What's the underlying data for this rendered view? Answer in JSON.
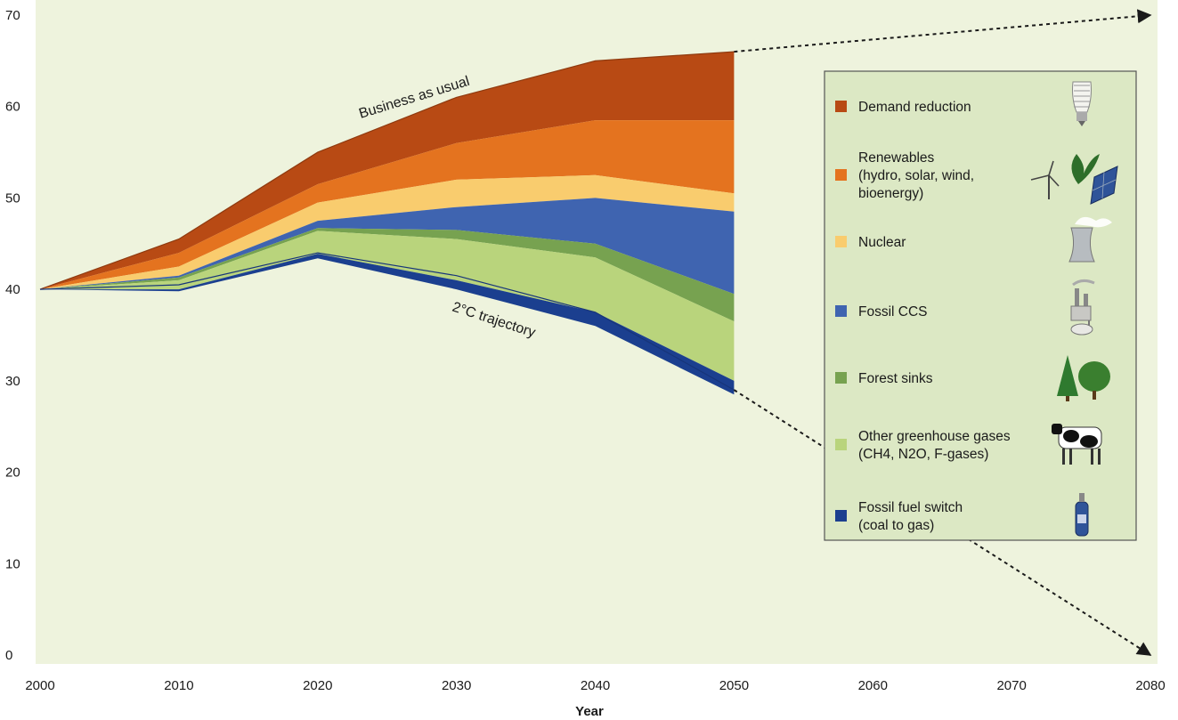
{
  "chart_data": {
    "type": "area",
    "xlabel": "Year",
    "ylabel": "",
    "xlim": [
      2000,
      2080
    ],
    "ylim": [
      0,
      70
    ],
    "x_ticks": [
      2000,
      2010,
      2020,
      2030,
      2040,
      2050,
      2060,
      2070,
      2080
    ],
    "y_ticks": [
      0,
      10,
      20,
      30,
      40,
      50,
      60,
      70
    ],
    "x": [
      2000,
      2010,
      2020,
      2030,
      2040,
      2050
    ],
    "upper_line": {
      "name": "Business as usual",
      "values": [
        40,
        45.5,
        55,
        61,
        65,
        66
      ]
    },
    "lower_line": {
      "name": "2°C trajectory",
      "values": [
        40,
        40.5,
        44,
        41.5,
        37.5,
        29
      ]
    },
    "series": [
      {
        "name": "Demand reduction",
        "color": "#b84a14",
        "values": [
          0,
          1.5,
          3.5,
          5,
          6.5,
          7.5
        ]
      },
      {
        "name": "Renewables (hydro, solar, wind, bioenergy)",
        "color": "#e4731f",
        "values": [
          0,
          1.5,
          2,
          4,
          6,
          8
        ]
      },
      {
        "name": "Nuclear",
        "color": "#f9cc6e",
        "values": [
          0,
          1,
          2,
          3,
          2.5,
          2
        ]
      },
      {
        "name": "Fossil CCS",
        "color": "#3f64b0",
        "values": [
          0,
          0.2,
          0.8,
          2.5,
          5,
          9
        ]
      },
      {
        "name": "Forest sinks",
        "color": "#77a250",
        "values": [
          0,
          0.3,
          0.3,
          1,
          1.5,
          3
        ]
      },
      {
        "name": "Other greenhouse gases (CH4, N2O, F-gases)",
        "color": "#b9d47c",
        "values": [
          0,
          1,
          2.5,
          4.5,
          6,
          6.5
        ]
      },
      {
        "name": "Fossil fuel switch (coal to gas)",
        "color": "#1b3f8f",
        "values": [
          0,
          0.2,
          0.5,
          1,
          1.5,
          1.5
        ]
      }
    ],
    "extension_arrows": [
      {
        "from": [
          2050,
          66
        ],
        "to": [
          2080,
          70
        ]
      },
      {
        "from": [
          2050,
          29
        ],
        "to": [
          2080,
          0
        ]
      }
    ],
    "grid": false,
    "legend_position": "right"
  },
  "legend": {
    "items": [
      {
        "lines": [
          "Demand reduction"
        ],
        "icon": "lightbulb-icon"
      },
      {
        "lines": [
          "Renewables",
          "(hydro, solar, wind,",
          "bioenergy)"
        ],
        "icon": "renewables-icon"
      },
      {
        "lines": [
          "Nuclear"
        ],
        "icon": "cooling-tower-icon"
      },
      {
        "lines": [
          "Fossil CCS"
        ],
        "icon": "factory-icon"
      },
      {
        "lines": [
          "Forest sinks"
        ],
        "icon": "trees-icon"
      },
      {
        "lines": [
          "Other greenhouse gases",
          "(CH4, N2O, F-gases)"
        ],
        "icon": "cow-icon"
      },
      {
        "lines": [
          "Fossil fuel switch",
          "(coal to gas)"
        ],
        "icon": "gas-cylinder-icon"
      }
    ]
  },
  "colors": {
    "plot_background": "#eef3dd",
    "legend_background": "#dce8c4"
  }
}
